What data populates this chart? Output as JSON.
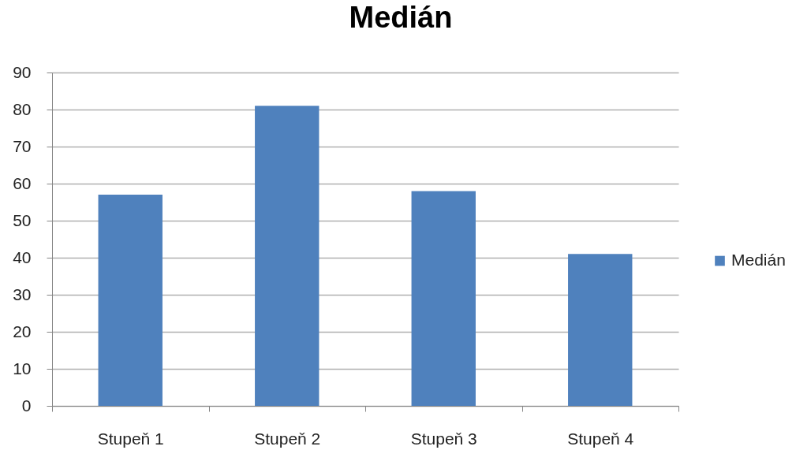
{
  "chart_data": {
    "type": "bar",
    "title": "Medián",
    "categories": [
      "Stupeň 1",
      "Stupeň 2",
      "Stupeň 3",
      "Stupeň 4"
    ],
    "series": [
      {
        "name": "Medián",
        "color": "#4f81bd",
        "values": [
          57,
          81,
          58,
          41
        ]
      }
    ],
    "ylim": [
      0,
      90
    ],
    "yticks": [
      0,
      10,
      20,
      30,
      40,
      50,
      60,
      70,
      80,
      90
    ],
    "grid": "y",
    "legend": "right"
  }
}
